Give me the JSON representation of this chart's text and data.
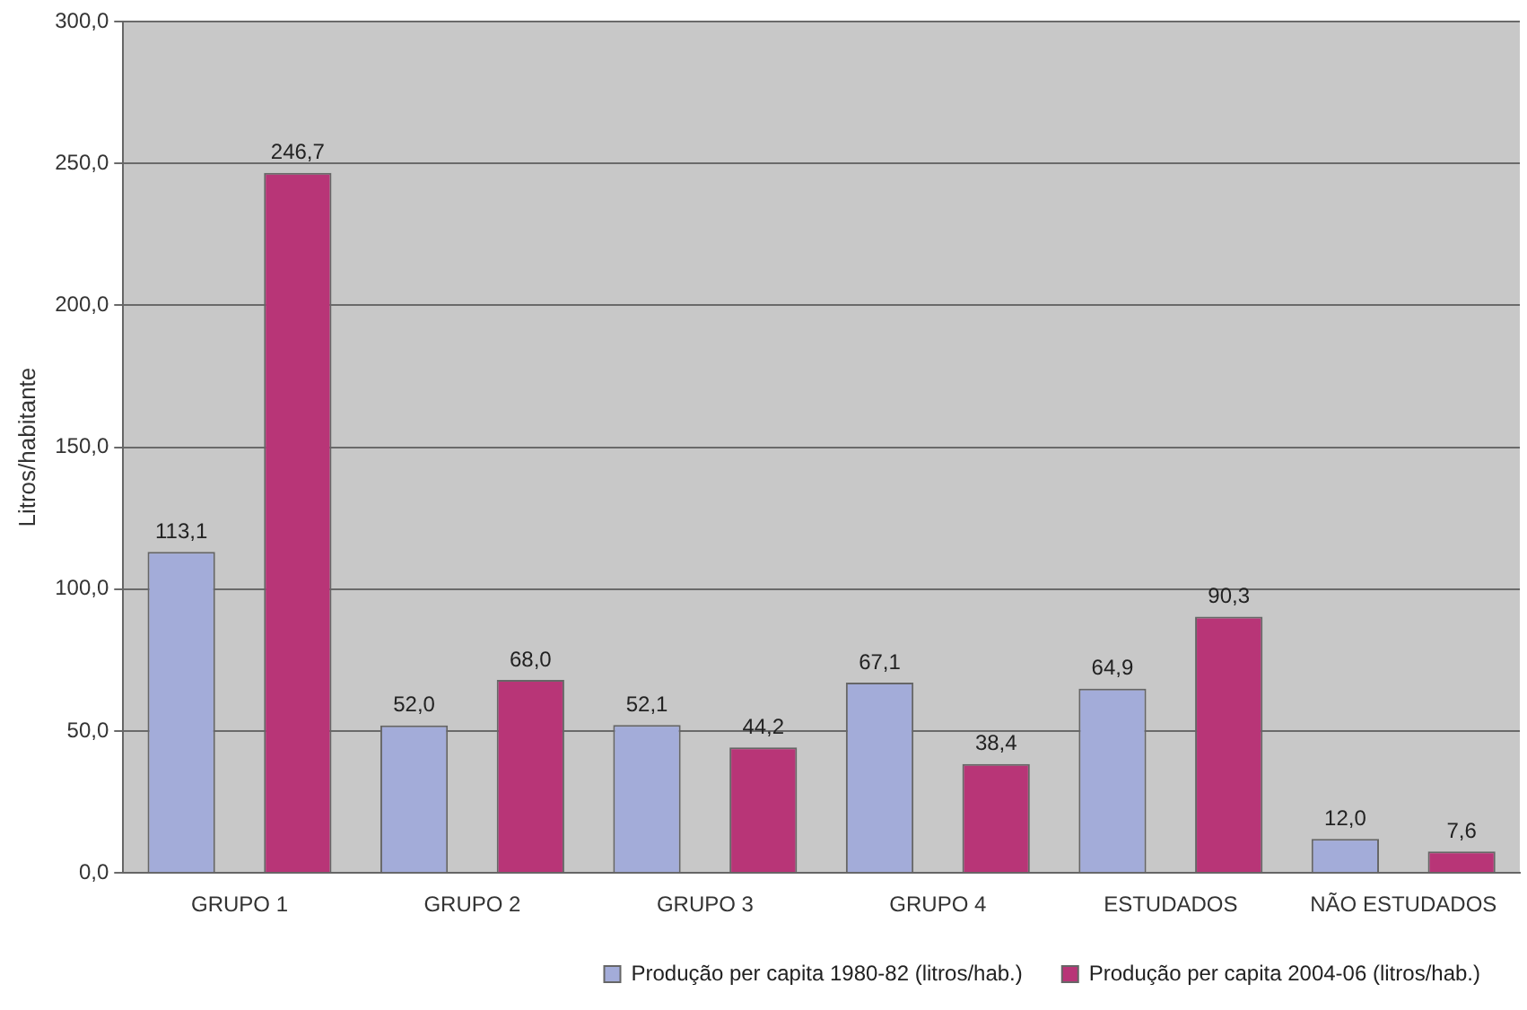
{
  "chart_data": {
    "type": "bar",
    "ylabel": "Litros/habitante",
    "categories": [
      "GRUPO 1",
      "GRUPO 2",
      "GRUPO 3",
      "GRUPO 4",
      "ESTUDADOS",
      "NÃO ESTUDADOS"
    ],
    "series": [
      {
        "name": "Produção per capita 1980-82 (litros/hab.)",
        "color": "#a3acd9",
        "values": [
          113.1,
          52.0,
          52.1,
          67.1,
          64.9,
          12.0
        ],
        "value_labels": [
          "113,1",
          "52,0",
          "52,1",
          "67,1",
          "64,9",
          "12,0"
        ]
      },
      {
        "name": "Produção per capita 2004-06 (litros/hab.)",
        "color": "#b83577",
        "values": [
          246.7,
          68.0,
          44.2,
          38.4,
          90.3,
          7.6
        ],
        "value_labels": [
          "246,7",
          "68,0",
          "44,2",
          "38,4",
          "90,3",
          "7,6"
        ]
      }
    ],
    "ylim": [
      0,
      300
    ],
    "yticks": [
      {
        "value": 0,
        "label": "0,0"
      },
      {
        "value": 50,
        "label": "50,0"
      },
      {
        "value": 100,
        "label": "100,0"
      },
      {
        "value": 150,
        "label": "150,0"
      },
      {
        "value": 200,
        "label": "200,0"
      },
      {
        "value": 250,
        "label": "250,0"
      },
      {
        "value": 300,
        "label": "300,0"
      }
    ],
    "grid": "y",
    "legend": "bottom right"
  }
}
